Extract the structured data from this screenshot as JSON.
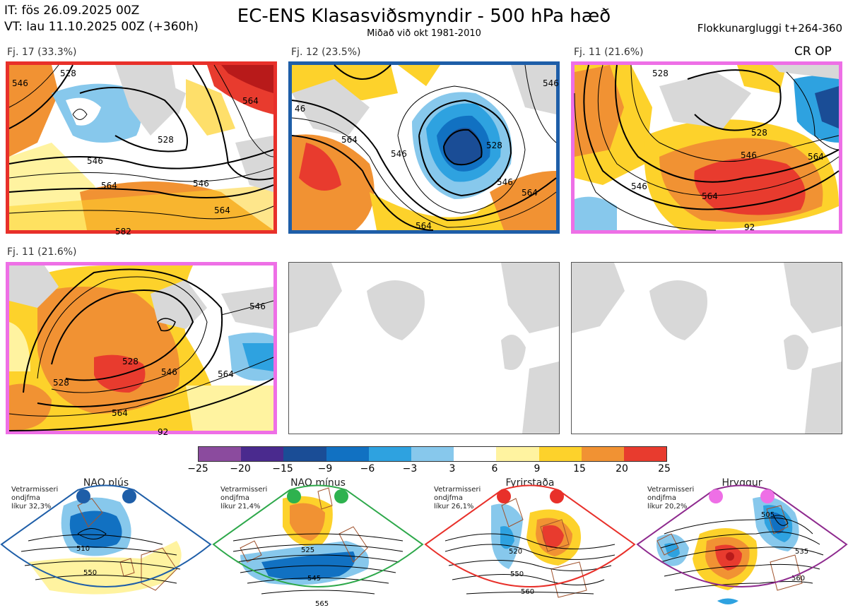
{
  "header": {
    "it_line": "IT: fös 26.09.2025 00Z",
    "vt_line": "VT: lau 11.10.2025 00Z  (+360h)",
    "title": "EC-ENS Klasasviðsmyndir - 500 hPa hæð",
    "subtitle": "Miðað við okt 1981-2010",
    "window": "Flokkunargluggi t+264-360",
    "cr_op": "CR OP"
  },
  "clusters": [
    {
      "label": "Fj. 17 (33.3%)",
      "border": "#e8302a",
      "contours": [
        "546",
        "528",
        "546",
        "564",
        "564",
        "582",
        "528",
        "546",
        "564"
      ]
    },
    {
      "label": "Fj. 12 (23.5%)",
      "border": "#1e5ea8",
      "contours": [
        "46",
        "564",
        "546",
        "528",
        "546",
        "564",
        "564",
        "546"
      ]
    },
    {
      "label": "Fj. 11 (21.6%)",
      "border": "#ee6fe6",
      "contours": [
        "528",
        "546",
        "564",
        "564",
        "546",
        "528",
        "92"
      ]
    },
    {
      "label": "Fj. 11 (21.6%)",
      "border": "#ee6fe6",
      "contours": [
        "528",
        "546",
        "564",
        "92",
        "546",
        "564",
        "528"
      ]
    }
  ],
  "colorbar": {
    "ticks": [
      "−25",
      "−20",
      "−15",
      "−9",
      "−6",
      "−3",
      "3",
      "6",
      "9",
      "15",
      "20",
      "25"
    ],
    "colors": [
      "#8b4b9e",
      "#4a2a8e",
      "#1a4d96",
      "#1171c2",
      "#2ea2e0",
      "#87c8ec",
      "#ffffff",
      "#fff3a0",
      "#fdd22b",
      "#f19233",
      "#e83b2e",
      "#b81a1a"
    ]
  },
  "regimes": [
    {
      "name": "NAO plús",
      "note": [
        "Vetrarmisseri",
        "ondjfma",
        "líkur 32,3%"
      ],
      "color": "#1e5ea8",
      "dot": "#1e5ea8",
      "contours": [
        "510",
        "550"
      ]
    },
    {
      "name": "NAO mínus",
      "note": [
        "Vetrarmisseri",
        "ondjfma",
        "líkur 21,4%"
      ],
      "color": "#2da84a",
      "dot": "#2eb24e",
      "contours": [
        "525",
        "545",
        "565"
      ]
    },
    {
      "name": "Fyrirstaða",
      "note": [
        "Vetrarmisseri",
        "ondjfma",
        "líkur 26,1%"
      ],
      "color": "#e8302a",
      "dot": "#e8302a",
      "contours": [
        "520",
        "550",
        "560"
      ]
    },
    {
      "name": "Hryggur",
      "note": [
        "Vetrarmisseri",
        "ondjfma",
        "líkur 20,2%"
      ],
      "color": "#8e2a8e",
      "dot": "#ee6fe6",
      "contours": [
        "505",
        "535",
        "560"
      ]
    }
  ]
}
